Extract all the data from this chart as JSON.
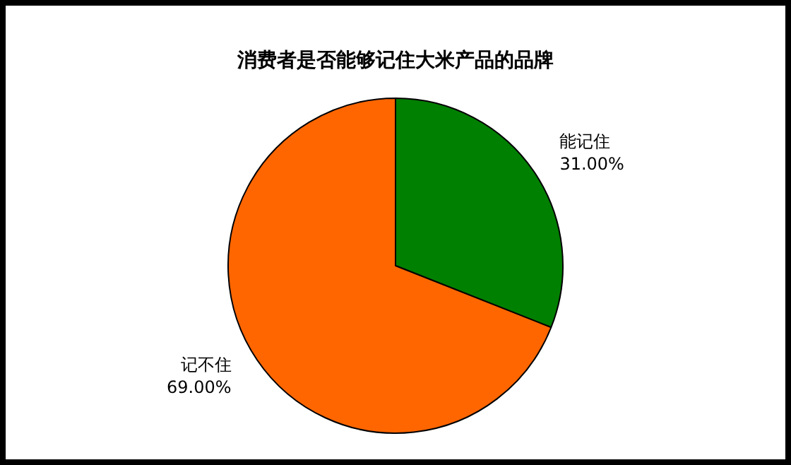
{
  "chart_data": {
    "type": "pie",
    "title": "消费者是否能够记住大米产品的品牌",
    "categories": [
      "能记住",
      "记不住"
    ],
    "values": [
      31,
      69
    ],
    "colors": [
      "#008000",
      "#ff6600"
    ],
    "value_labels": [
      "31.00%",
      "69.00%"
    ],
    "legend": false
  }
}
